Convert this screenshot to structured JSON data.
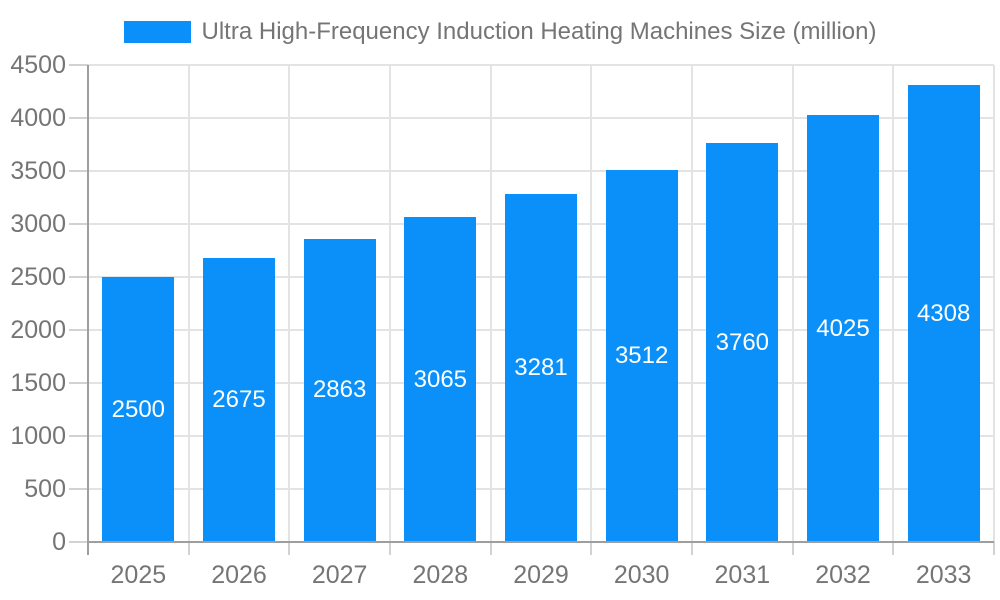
{
  "legend": {
    "label": "Ultra High-Frequency Induction Heating Machines Size (million)"
  },
  "chart_data": {
    "type": "bar",
    "title": "Ultra High-Frequency Induction Heating Machines Size (million)",
    "categories": [
      "2025",
      "2026",
      "2027",
      "2028",
      "2029",
      "2030",
      "2031",
      "2032",
      "2033"
    ],
    "values": [
      2500,
      2675,
      2863,
      3065,
      3281,
      3512,
      3760,
      4025,
      4308
    ],
    "xlabel": "",
    "ylabel": "",
    "ylim": [
      0,
      4500
    ],
    "yticks": [
      0,
      500,
      1000,
      1500,
      2000,
      2500,
      3000,
      3500,
      4000,
      4500
    ],
    "grid": true,
    "legend_position": "top",
    "value_labels": "inside-center"
  },
  "colors": {
    "bar": "#0a90f8",
    "grid_line": "#e3e3e3",
    "tick_line": "#d2d2d2",
    "axis_line": "#9e9e9e",
    "tick_label": "#757575",
    "legend_text": "#757575",
    "value_label": "#ffffff",
    "background": "#ffffff"
  }
}
